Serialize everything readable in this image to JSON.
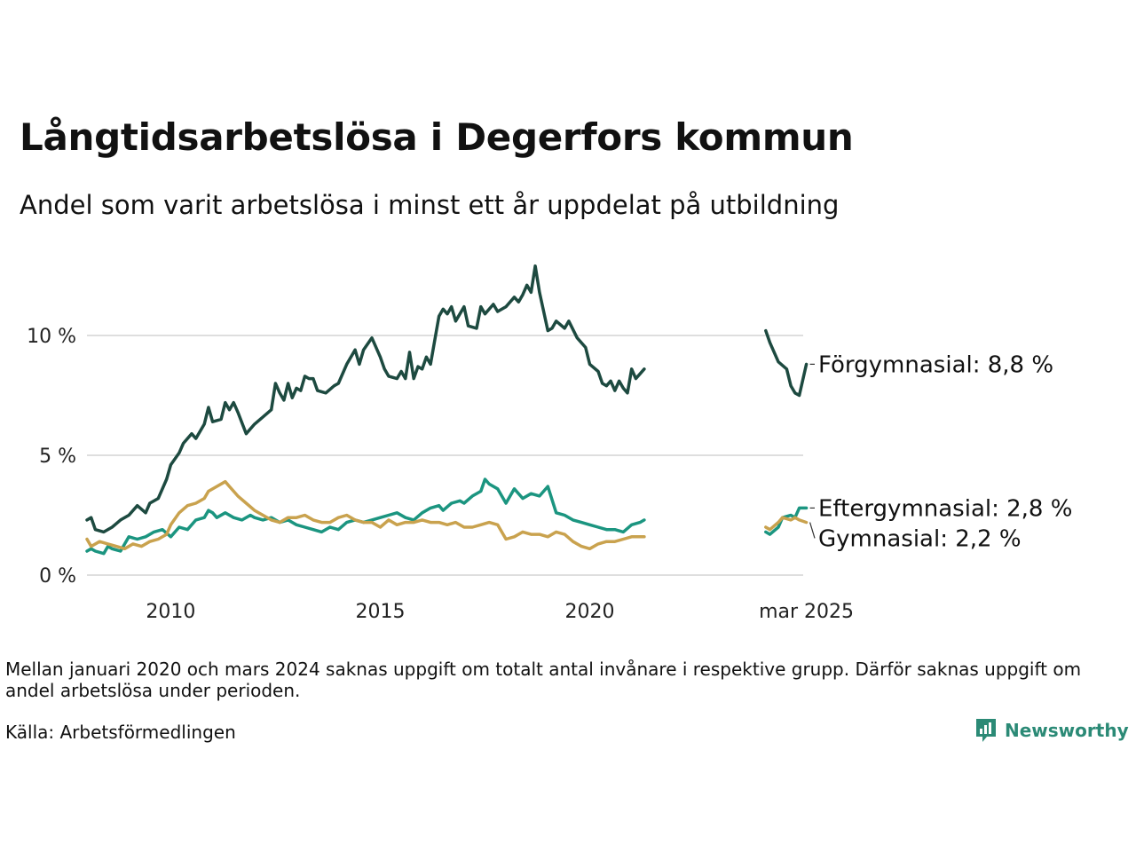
{
  "title": "Långtidsarbetslösa i Degerfors kommun",
  "subtitle": "Andel som varit arbetslösa i minst ett år uppdelat på utbildning",
  "note": "Mellan januari 2020 och mars 2024 saknas uppgift om totalt antal invånare i respektive grupp. Därför saknas uppgift om andel arbetslösa under perioden.",
  "source": "Källa: Arbetsförmedlingen",
  "brand": {
    "name": "Newsworthy",
    "icon": "bar-chart-logo-icon",
    "color": "#2b8a76"
  },
  "chart_data": {
    "type": "line",
    "x_unit": "year",
    "xlim": [
      2008.0,
      2025.2
    ],
    "ylim": [
      0,
      13.5
    ],
    "yticks": [
      0,
      5,
      10
    ],
    "ytick_labels": [
      "0 %",
      "5 %",
      "10 %"
    ],
    "xticks": [
      2010,
      2015,
      2020,
      2025.17
    ],
    "xtick_labels": [
      "2010",
      "2015",
      "2020",
      "mar 2025"
    ],
    "grid": "horizontal",
    "legend": "direct labels at line ends",
    "series": [
      {
        "name": "Förgymnasial",
        "end_label": "Förgymnasial: 8,8 %",
        "color": "#1d4a40",
        "points": [
          [
            2008.0,
            2.3
          ],
          [
            2008.1,
            2.4
          ],
          [
            2008.2,
            1.9
          ],
          [
            2008.4,
            1.8
          ],
          [
            2008.6,
            2.0
          ],
          [
            2008.8,
            2.3
          ],
          [
            2009.0,
            2.5
          ],
          [
            2009.2,
            2.9
          ],
          [
            2009.4,
            2.6
          ],
          [
            2009.5,
            3.0
          ],
          [
            2009.7,
            3.2
          ],
          [
            2009.9,
            4.0
          ],
          [
            2010.0,
            4.6
          ],
          [
            2010.2,
            5.1
          ],
          [
            2010.3,
            5.5
          ],
          [
            2010.5,
            5.9
          ],
          [
            2010.6,
            5.7
          ],
          [
            2010.8,
            6.3
          ],
          [
            2010.9,
            7.0
          ],
          [
            2011.0,
            6.4
          ],
          [
            2011.2,
            6.5
          ],
          [
            2011.3,
            7.2
          ],
          [
            2011.4,
            6.9
          ],
          [
            2011.5,
            7.2
          ],
          [
            2011.6,
            6.8
          ],
          [
            2011.8,
            5.9
          ],
          [
            2012.0,
            6.3
          ],
          [
            2012.2,
            6.6
          ],
          [
            2012.4,
            6.9
          ],
          [
            2012.5,
            8.0
          ],
          [
            2012.6,
            7.6
          ],
          [
            2012.7,
            7.3
          ],
          [
            2012.8,
            8.0
          ],
          [
            2012.9,
            7.4
          ],
          [
            2013.0,
            7.8
          ],
          [
            2013.1,
            7.7
          ],
          [
            2013.2,
            8.3
          ],
          [
            2013.3,
            8.2
          ],
          [
            2013.4,
            8.2
          ],
          [
            2013.5,
            7.7
          ],
          [
            2013.7,
            7.6
          ],
          [
            2013.9,
            7.9
          ],
          [
            2014.0,
            8.0
          ],
          [
            2014.2,
            8.8
          ],
          [
            2014.4,
            9.4
          ],
          [
            2014.5,
            8.8
          ],
          [
            2014.6,
            9.4
          ],
          [
            2014.8,
            9.9
          ],
          [
            2015.0,
            9.1
          ],
          [
            2015.1,
            8.6
          ],
          [
            2015.2,
            8.3
          ],
          [
            2015.4,
            8.2
          ],
          [
            2015.5,
            8.5
          ],
          [
            2015.6,
            8.2
          ],
          [
            2015.7,
            9.3
          ],
          [
            2015.8,
            8.2
          ],
          [
            2015.9,
            8.7
          ],
          [
            2016.0,
            8.6
          ],
          [
            2016.1,
            9.1
          ],
          [
            2016.2,
            8.8
          ],
          [
            2016.4,
            10.8
          ],
          [
            2016.5,
            11.1
          ],
          [
            2016.6,
            10.9
          ],
          [
            2016.7,
            11.2
          ],
          [
            2016.8,
            10.6
          ],
          [
            2016.9,
            10.9
          ],
          [
            2017.0,
            11.2
          ],
          [
            2017.1,
            10.4
          ],
          [
            2017.3,
            10.3
          ],
          [
            2017.4,
            11.2
          ],
          [
            2017.5,
            10.9
          ],
          [
            2017.7,
            11.3
          ],
          [
            2017.8,
            11.0
          ],
          [
            2018.0,
            11.2
          ],
          [
            2018.2,
            11.6
          ],
          [
            2018.3,
            11.4
          ],
          [
            2018.4,
            11.7
          ],
          [
            2018.5,
            12.1
          ],
          [
            2018.6,
            11.8
          ],
          [
            2018.7,
            12.9
          ],
          [
            2018.8,
            11.8
          ],
          [
            2019.0,
            10.2
          ],
          [
            2019.1,
            10.3
          ],
          [
            2019.2,
            10.6
          ],
          [
            2019.4,
            10.3
          ],
          [
            2019.5,
            10.6
          ],
          [
            2019.7,
            9.9
          ],
          [
            2019.9,
            9.5
          ],
          [
            2020.0,
            8.8
          ],
          [
            2020.2,
            8.5
          ],
          [
            2020.3,
            8.0
          ],
          [
            2020.4,
            7.9
          ],
          [
            2020.5,
            8.1
          ],
          [
            2020.6,
            7.7
          ],
          [
            2020.7,
            8.1
          ],
          [
            2020.8,
            7.8
          ],
          [
            2020.9,
            7.6
          ],
          [
            2021.0,
            8.6
          ],
          [
            2021.1,
            8.2
          ],
          [
            2021.2,
            8.4
          ],
          [
            2021.3,
            8.6
          ],
          null,
          [
            2024.2,
            10.2
          ],
          [
            2024.3,
            9.7
          ],
          [
            2024.5,
            8.9
          ],
          [
            2024.7,
            8.6
          ],
          [
            2024.8,
            7.9
          ],
          [
            2024.9,
            7.6
          ],
          [
            2025.0,
            7.5
          ],
          [
            2025.17,
            8.8
          ]
        ]
      },
      {
        "name": "Eftergymnasial",
        "end_label": "Eftergymnasial: 2,8 %",
        "color": "#1b9580",
        "points": [
          [
            2008.0,
            1.0
          ],
          [
            2008.1,
            1.1
          ],
          [
            2008.2,
            1.0
          ],
          [
            2008.4,
            0.9
          ],
          [
            2008.5,
            1.2
          ],
          [
            2008.6,
            1.1
          ],
          [
            2008.8,
            1.0
          ],
          [
            2009.0,
            1.6
          ],
          [
            2009.2,
            1.5
          ],
          [
            2009.4,
            1.6
          ],
          [
            2009.6,
            1.8
          ],
          [
            2009.8,
            1.9
          ],
          [
            2010.0,
            1.6
          ],
          [
            2010.2,
            2.0
          ],
          [
            2010.4,
            1.9
          ],
          [
            2010.6,
            2.3
          ],
          [
            2010.8,
            2.4
          ],
          [
            2010.9,
            2.7
          ],
          [
            2011.0,
            2.6
          ],
          [
            2011.1,
            2.4
          ],
          [
            2011.3,
            2.6
          ],
          [
            2011.5,
            2.4
          ],
          [
            2011.7,
            2.3
          ],
          [
            2011.9,
            2.5
          ],
          [
            2012.0,
            2.4
          ],
          [
            2012.2,
            2.3
          ],
          [
            2012.4,
            2.4
          ],
          [
            2012.6,
            2.2
          ],
          [
            2012.8,
            2.3
          ],
          [
            2013.0,
            2.1
          ],
          [
            2013.2,
            2.0
          ],
          [
            2013.4,
            1.9
          ],
          [
            2013.6,
            1.8
          ],
          [
            2013.8,
            2.0
          ],
          [
            2014.0,
            1.9
          ],
          [
            2014.2,
            2.2
          ],
          [
            2014.4,
            2.3
          ],
          [
            2014.6,
            2.2
          ],
          [
            2014.8,
            2.3
          ],
          [
            2015.0,
            2.4
          ],
          [
            2015.2,
            2.5
          ],
          [
            2015.4,
            2.6
          ],
          [
            2015.6,
            2.4
          ],
          [
            2015.8,
            2.3
          ],
          [
            2016.0,
            2.6
          ],
          [
            2016.2,
            2.8
          ],
          [
            2016.4,
            2.9
          ],
          [
            2016.5,
            2.7
          ],
          [
            2016.7,
            3.0
          ],
          [
            2016.9,
            3.1
          ],
          [
            2017.0,
            3.0
          ],
          [
            2017.2,
            3.3
          ],
          [
            2017.4,
            3.5
          ],
          [
            2017.5,
            4.0
          ],
          [
            2017.6,
            3.8
          ],
          [
            2017.8,
            3.6
          ],
          [
            2018.0,
            3.0
          ],
          [
            2018.2,
            3.6
          ],
          [
            2018.4,
            3.2
          ],
          [
            2018.6,
            3.4
          ],
          [
            2018.8,
            3.3
          ],
          [
            2019.0,
            3.7
          ],
          [
            2019.2,
            2.6
          ],
          [
            2019.4,
            2.5
          ],
          [
            2019.6,
            2.3
          ],
          [
            2019.8,
            2.2
          ],
          [
            2020.0,
            2.1
          ],
          [
            2020.2,
            2.0
          ],
          [
            2020.4,
            1.9
          ],
          [
            2020.6,
            1.9
          ],
          [
            2020.8,
            1.8
          ],
          [
            2021.0,
            2.1
          ],
          [
            2021.2,
            2.2
          ],
          [
            2021.3,
            2.3
          ],
          null,
          [
            2024.2,
            1.8
          ],
          [
            2024.3,
            1.7
          ],
          [
            2024.5,
            2.0
          ],
          [
            2024.6,
            2.4
          ],
          [
            2024.8,
            2.5
          ],
          [
            2024.9,
            2.4
          ],
          [
            2025.0,
            2.8
          ],
          [
            2025.17,
            2.8
          ]
        ]
      },
      {
        "name": "Gymnasial",
        "end_label": "Gymnasial: 2,2 %",
        "color": "#c9a24e",
        "points": [
          [
            2008.0,
            1.5
          ],
          [
            2008.1,
            1.2
          ],
          [
            2008.3,
            1.4
          ],
          [
            2008.5,
            1.3
          ],
          [
            2008.7,
            1.2
          ],
          [
            2008.9,
            1.1
          ],
          [
            2009.1,
            1.3
          ],
          [
            2009.3,
            1.2
          ],
          [
            2009.5,
            1.4
          ],
          [
            2009.7,
            1.5
          ],
          [
            2009.9,
            1.7
          ],
          [
            2010.0,
            2.1
          ],
          [
            2010.2,
            2.6
          ],
          [
            2010.4,
            2.9
          ],
          [
            2010.6,
            3.0
          ],
          [
            2010.8,
            3.2
          ],
          [
            2010.9,
            3.5
          ],
          [
            2011.1,
            3.7
          ],
          [
            2011.3,
            3.9
          ],
          [
            2011.4,
            3.7
          ],
          [
            2011.6,
            3.3
          ],
          [
            2011.8,
            3.0
          ],
          [
            2012.0,
            2.7
          ],
          [
            2012.2,
            2.5
          ],
          [
            2012.4,
            2.3
          ],
          [
            2012.6,
            2.2
          ],
          [
            2012.8,
            2.4
          ],
          [
            2013.0,
            2.4
          ],
          [
            2013.2,
            2.5
          ],
          [
            2013.4,
            2.3
          ],
          [
            2013.6,
            2.2
          ],
          [
            2013.8,
            2.2
          ],
          [
            2014.0,
            2.4
          ],
          [
            2014.2,
            2.5
          ],
          [
            2014.4,
            2.3
          ],
          [
            2014.6,
            2.2
          ],
          [
            2014.8,
            2.2
          ],
          [
            2015.0,
            2.0
          ],
          [
            2015.2,
            2.3
          ],
          [
            2015.4,
            2.1
          ],
          [
            2015.6,
            2.2
          ],
          [
            2015.8,
            2.2
          ],
          [
            2016.0,
            2.3
          ],
          [
            2016.2,
            2.2
          ],
          [
            2016.4,
            2.2
          ],
          [
            2016.6,
            2.1
          ],
          [
            2016.8,
            2.2
          ],
          [
            2017.0,
            2.0
          ],
          [
            2017.2,
            2.0
          ],
          [
            2017.4,
            2.1
          ],
          [
            2017.6,
            2.2
          ],
          [
            2017.8,
            2.1
          ],
          [
            2018.0,
            1.5
          ],
          [
            2018.2,
            1.6
          ],
          [
            2018.4,
            1.8
          ],
          [
            2018.6,
            1.7
          ],
          [
            2018.8,
            1.7
          ],
          [
            2019.0,
            1.6
          ],
          [
            2019.2,
            1.8
          ],
          [
            2019.4,
            1.7
          ],
          [
            2019.6,
            1.4
          ],
          [
            2019.8,
            1.2
          ],
          [
            2020.0,
            1.1
          ],
          [
            2020.2,
            1.3
          ],
          [
            2020.4,
            1.4
          ],
          [
            2020.6,
            1.4
          ],
          [
            2020.8,
            1.5
          ],
          [
            2021.0,
            1.6
          ],
          [
            2021.2,
            1.6
          ],
          [
            2021.3,
            1.6
          ],
          null,
          [
            2024.2,
            2.0
          ],
          [
            2024.3,
            1.9
          ],
          [
            2024.5,
            2.2
          ],
          [
            2024.6,
            2.4
          ],
          [
            2024.8,
            2.3
          ],
          [
            2024.9,
            2.4
          ],
          [
            2025.0,
            2.3
          ],
          [
            2025.17,
            2.2
          ]
        ]
      }
    ]
  }
}
